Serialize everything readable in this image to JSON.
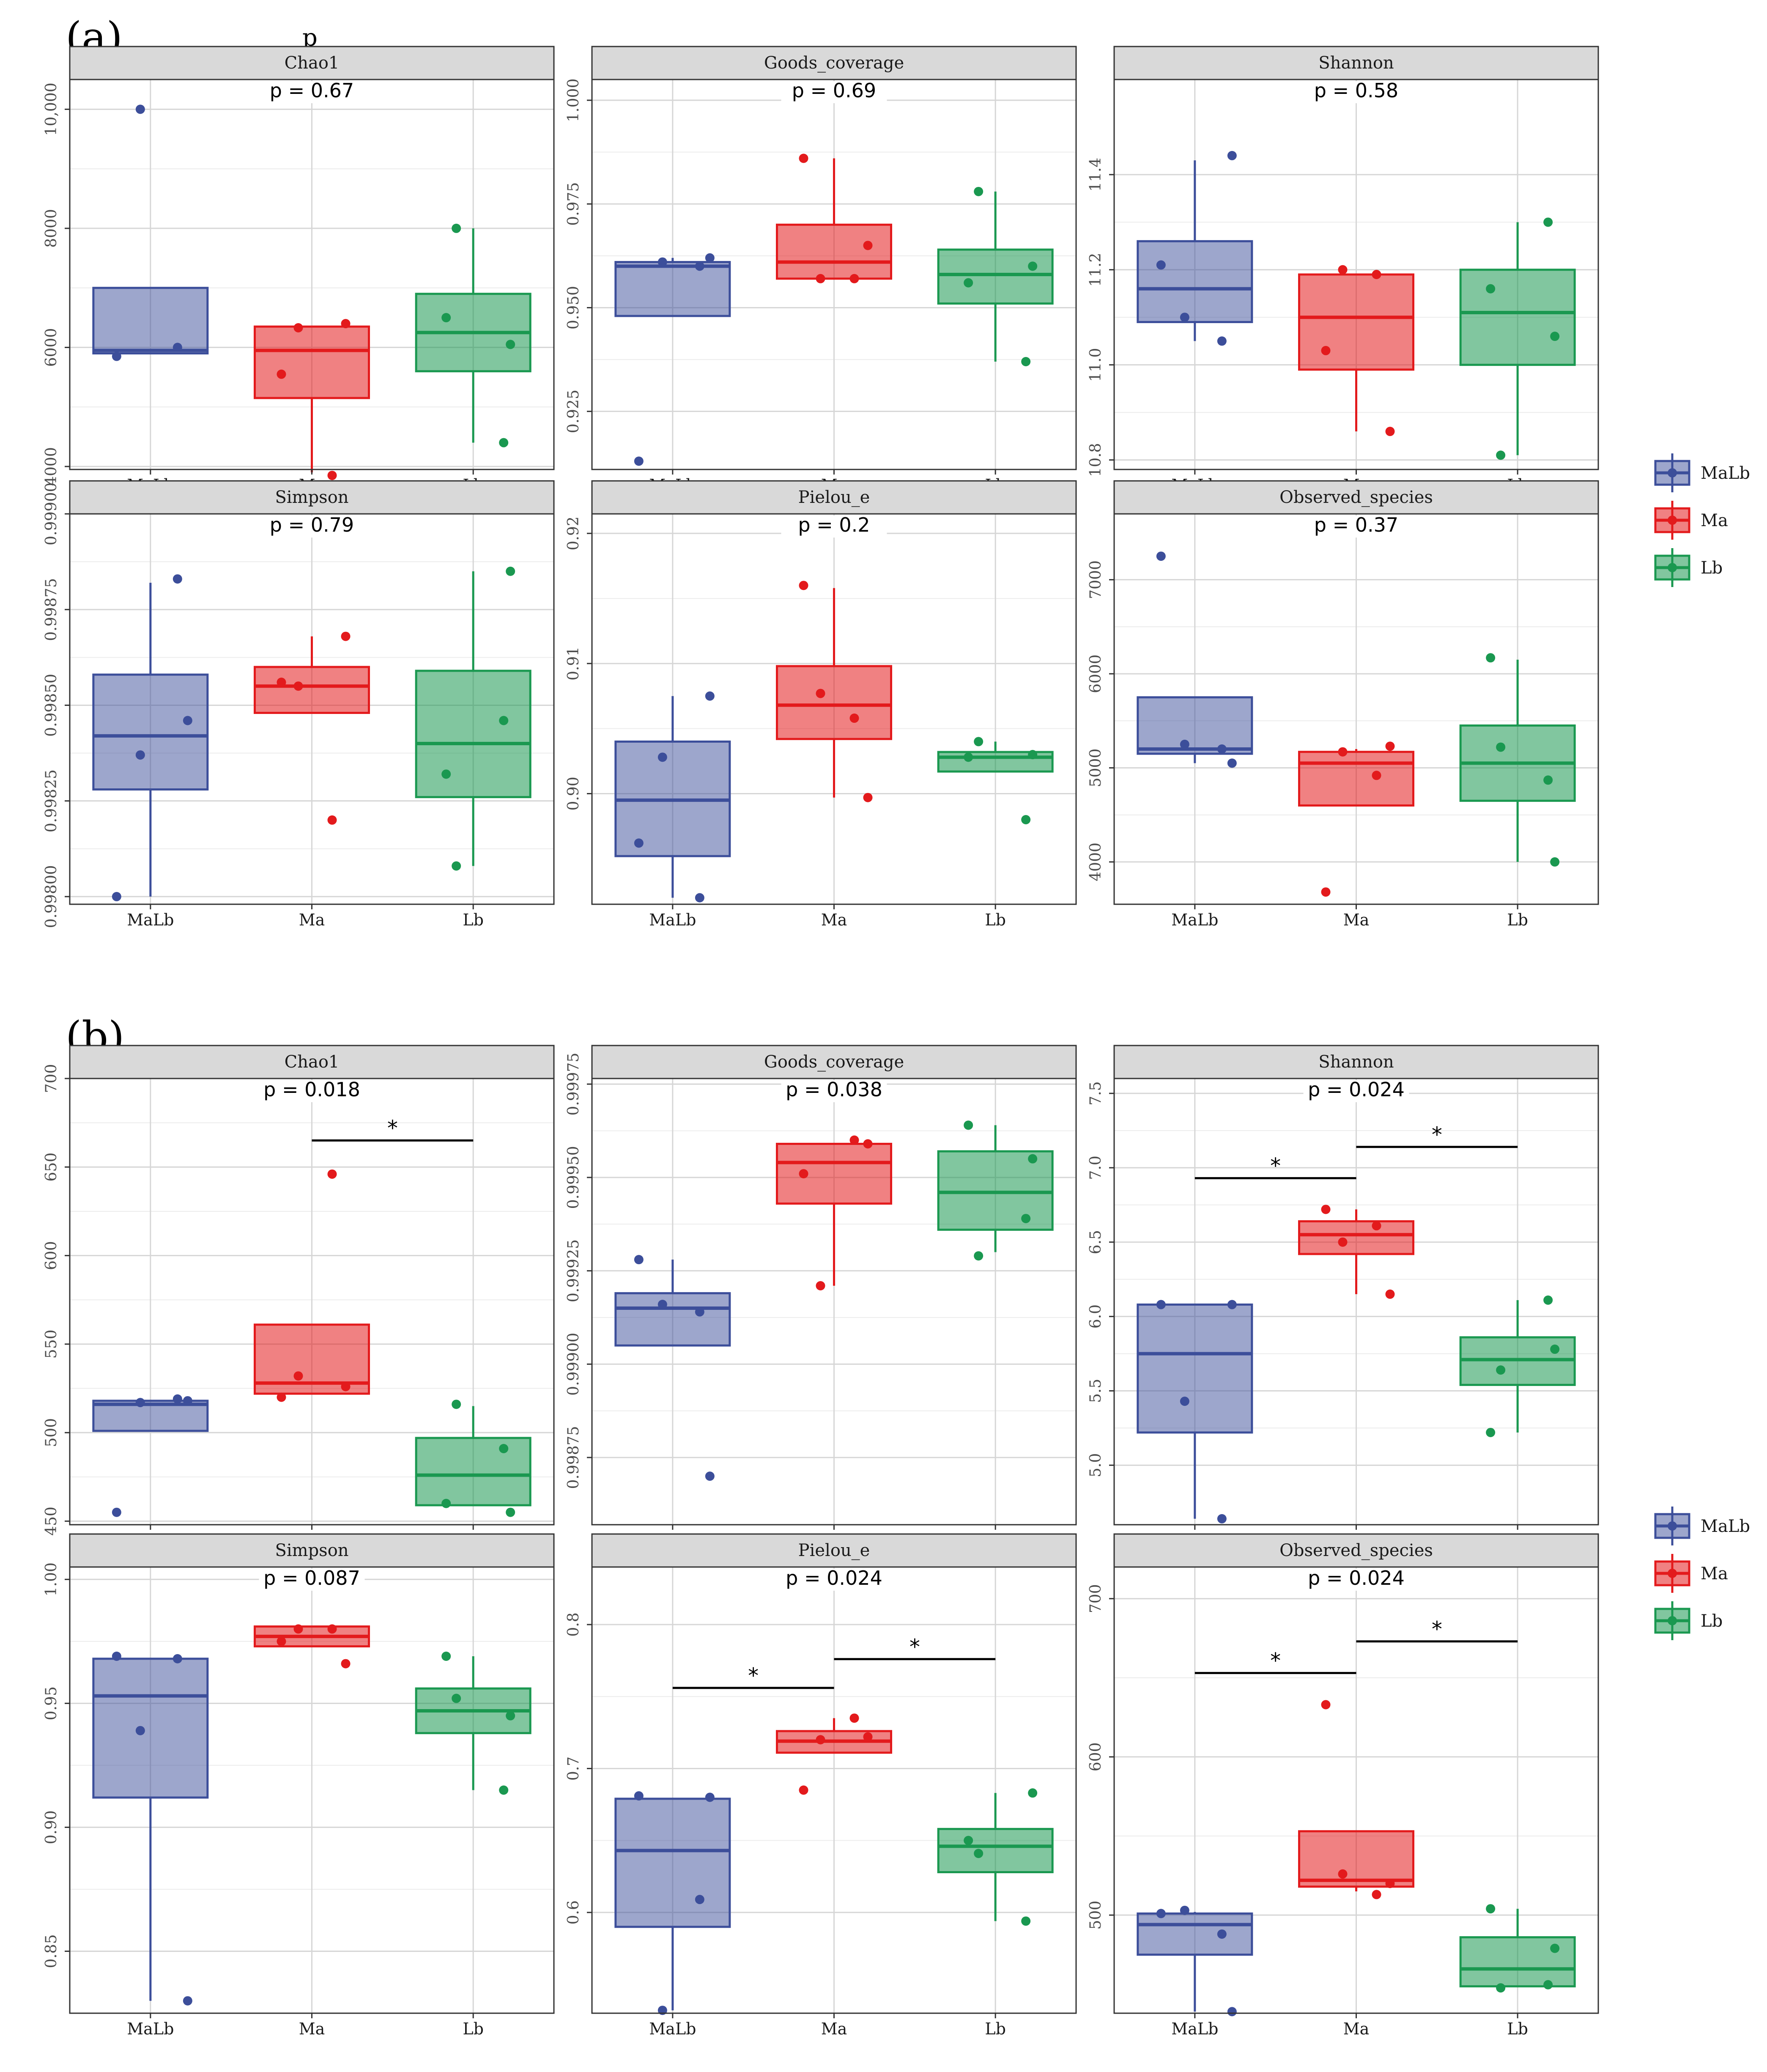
{
  "figure": {
    "stray_label": "p",
    "colors": {
      "MaLb": "#3c4e9a",
      "Ma": "#e31a1c",
      "Lb": "#1a9850"
    },
    "legend": [
      "MaLb",
      "Ma",
      "Lb"
    ]
  },
  "chart_data": [
    {
      "panel": "(a)",
      "type": "box",
      "categories": [
        "MaLb",
        "Ma",
        "Lb"
      ],
      "facets": [
        {
          "title": "Chao1",
          "p_label": "p = 0.67",
          "ylim": [
            3950,
            10500
          ],
          "ticks": [
            4000,
            6000,
            8000,
            10000
          ],
          "tick_labels": [
            "4000",
            "6000",
            "8000",
            "10,000"
          ],
          "boxes": [
            {
              "q1": 5900,
              "median": 5950,
              "q3": 7000,
              "lo": 5900,
              "hi": 7000,
              "points": [
                5850,
                6000,
                10000
              ]
            },
            {
              "q1": 5150,
              "median": 5950,
              "q3": 6350,
              "lo": 3900,
              "hi": 6350,
              "points": [
                3850,
                5550,
                6400,
                6330
              ]
            },
            {
              "q1": 5600,
              "median": 6250,
              "q3": 6900,
              "lo": 4400,
              "hi": 8000,
              "points": [
                6500,
                6050,
                8000,
                4400
              ]
            }
          ],
          "sig": []
        },
        {
          "title": "Goods_coverage",
          "p_label": "p = 0.69",
          "ylim": [
            0.911,
            1.005
          ],
          "ticks": [
            0.925,
            0.95,
            0.975,
            1.0
          ],
          "tick_labels": [
            "0.925",
            "0.950",
            "0.975",
            "1.000"
          ],
          "boxes": [
            {
              "q1": 0.948,
              "median": 0.96,
              "q3": 0.961,
              "lo": 0.948,
              "hi": 0.962,
              "points": [
                0.913,
                0.96,
                0.961,
                0.962
              ]
            },
            {
              "q1": 0.957,
              "median": 0.961,
              "q3": 0.97,
              "lo": 0.957,
              "hi": 0.986,
              "points": [
                0.957,
                0.986,
                0.965,
                0.957
              ]
            },
            {
              "q1": 0.951,
              "median": 0.958,
              "q3": 0.964,
              "lo": 0.937,
              "hi": 0.978,
              "points": [
                0.956,
                0.96,
                0.978,
                0.937
              ]
            }
          ],
          "sig": []
        },
        {
          "title": "Shannon",
          "p_label": "p = 0.58",
          "ylim": [
            10.78,
            11.6
          ],
          "ticks": [
            10.8,
            11.0,
            11.2,
            11.4
          ],
          "tick_labels": [
            "10.8",
            "11.0",
            "11.2",
            "11.4"
          ],
          "boxes": [
            {
              "q1": 11.09,
              "median": 11.16,
              "q3": 11.26,
              "lo": 11.05,
              "hi": 11.43,
              "points": [
                11.21,
                11.05,
                11.1,
                11.44
              ]
            },
            {
              "q1": 10.99,
              "median": 11.1,
              "q3": 11.19,
              "lo": 10.86,
              "hi": 11.19,
              "points": [
                11.19,
                11.03,
                10.86,
                11.2
              ]
            },
            {
              "q1": 11.0,
              "median": 11.11,
              "q3": 11.2,
              "lo": 10.81,
              "hi": 11.3,
              "points": [
                11.16,
                11.06,
                10.81,
                11.3
              ]
            }
          ],
          "sig": []
        },
        {
          "title": "Simpson",
          "p_label": "p = 0.79",
          "ylim": [
            0.99798,
            0.999
          ],
          "ticks": [
            0.998,
            0.99825,
            0.9985,
            0.99875,
            0.999
          ],
          "tick_labels": [
            "0.99800",
            "0.99825",
            "0.99850",
            "0.99875",
            "0.99900"
          ],
          "boxes": [
            {
              "q1": 0.99828,
              "median": 0.99842,
              "q3": 0.99858,
              "lo": 0.998,
              "hi": 0.99882,
              "points": [
                0.998,
                0.99883,
                0.99837,
                0.99846
              ]
            },
            {
              "q1": 0.99848,
              "median": 0.99855,
              "q3": 0.9986,
              "lo": 0.99848,
              "hi": 0.99868,
              "points": [
                0.9982,
                0.99856,
                0.99868,
                0.99855
              ]
            },
            {
              "q1": 0.99826,
              "median": 0.9984,
              "q3": 0.99859,
              "lo": 0.99808,
              "hi": 0.99885,
              "points": [
                0.99832,
                0.99885,
                0.99808,
                0.99846
              ]
            }
          ],
          "sig": []
        },
        {
          "title": "Pielou_e",
          "p_label": "p = 0.2",
          "ylim": [
            0.8915,
            0.9215
          ],
          "ticks": [
            0.9,
            0.91,
            0.92
          ],
          "tick_labels": [
            "0.90",
            "0.91",
            "0.92"
          ],
          "boxes": [
            {
              "q1": 0.8952,
              "median": 0.8995,
              "q3": 0.904,
              "lo": 0.892,
              "hi": 0.9075,
              "points": [
                0.8962,
                0.892,
                0.9028,
                0.9075
              ]
            },
            {
              "q1": 0.9042,
              "median": 0.9068,
              "q3": 0.9098,
              "lo": 0.8997,
              "hi": 0.9158,
              "points": [
                0.9058,
                0.916,
                0.8997,
                0.9077
              ]
            },
            {
              "q1": 0.9017,
              "median": 0.9028,
              "q3": 0.9032,
              "lo": 0.9017,
              "hi": 0.904,
              "points": [
                0.9028,
                0.903,
                0.904,
                0.898
              ]
            }
          ],
          "sig": []
        },
        {
          "title": "Observed_species",
          "p_label": "p = 0.37",
          "ylim": [
            3550,
            7700
          ],
          "ticks": [
            4000,
            5000,
            6000,
            7000
          ],
          "tick_labels": [
            "4000",
            "5000",
            "6000",
            "7000"
          ],
          "boxes": [
            {
              "q1": 5150,
              "median": 5200,
              "q3": 5750,
              "lo": 5050,
              "hi": 5750,
              "points": [
                7250,
                5200,
                5250,
                5050
              ]
            },
            {
              "q1": 4600,
              "median": 5050,
              "q3": 5170,
              "lo": 4600,
              "hi": 5200,
              "points": [
                4920,
                3680,
                5230,
                5170
              ]
            },
            {
              "q1": 4650,
              "median": 5050,
              "q3": 5450,
              "lo": 4000,
              "hi": 6150,
              "points": [
                6170,
                4000,
                5220,
                4870
              ]
            }
          ],
          "sig": []
        }
      ]
    },
    {
      "panel": "(b)",
      "type": "box",
      "categories": [
        "MaLb",
        "Ma",
        "Lb"
      ],
      "facets": [
        {
          "title": "Chao1",
          "p_label": "p = 0.018",
          "ylim": [
            448,
            700
          ],
          "ticks": [
            450,
            500,
            550,
            600,
            650,
            700
          ],
          "tick_labels": [
            "450",
            "500",
            "550",
            "600",
            "650",
            "700"
          ],
          "boxes": [
            {
              "q1": 501,
              "median": 516,
              "q3": 518,
              "lo": 501,
              "hi": 518,
              "points": [
                455,
                519,
                517,
                518
              ]
            },
            {
              "q1": 522,
              "median": 528,
              "q3": 561,
              "lo": 522,
              "hi": 561,
              "points": [
                646,
                520,
                526,
                532
              ]
            },
            {
              "q1": 459,
              "median": 476,
              "q3": 497,
              "lo": 459,
              "hi": 515,
              "points": [
                460,
                455,
                516,
                491
              ]
            }
          ],
          "sig": [
            {
              "from": 1,
              "to": 2,
              "label": "*",
              "y": 665
            }
          ]
        },
        {
          "title": "Goods_coverage",
          "p_label": "p = 0.038",
          "ylim": [
            0.99857,
            0.999765
          ],
          "ticks": [
            0.99875,
            0.999,
            0.99925,
            0.9995,
            0.99975
          ],
          "tick_labels": [
            "0.99875",
            "0.99900",
            "0.99925",
            "0.99950",
            "0.99975"
          ],
          "boxes": [
            {
              "q1": 0.99905,
              "median": 0.99915,
              "q3": 0.99919,
              "lo": 0.99905,
              "hi": 0.99928,
              "points": [
                0.99928,
                0.99914,
                0.99916,
                0.9987
              ]
            },
            {
              "q1": 0.99943,
              "median": 0.99954,
              "q3": 0.99959,
              "lo": 0.99921,
              "hi": 0.99959,
              "points": [
                0.9996,
                0.99951,
                0.99959,
                0.99921
              ]
            },
            {
              "q1": 0.99936,
              "median": 0.99946,
              "q3": 0.99957,
              "lo": 0.9993,
              "hi": 0.99964,
              "points": [
                0.99964,
                0.99955,
                0.99929,
                0.99939
              ]
            }
          ],
          "sig": []
        },
        {
          "title": "Shannon",
          "p_label": "p = 0.024",
          "ylim": [
            4.6,
            7.6
          ],
          "ticks": [
            5.0,
            5.5,
            6.0,
            6.5,
            7.0,
            7.5
          ],
          "tick_labels": [
            "5.0",
            "5.5",
            "6.0",
            "6.5",
            "7.0",
            "7.5"
          ],
          "boxes": [
            {
              "q1": 5.22,
              "median": 5.75,
              "q3": 6.08,
              "lo": 4.64,
              "hi": 6.08,
              "points": [
                6.08,
                4.64,
                5.43,
                6.08
              ]
            },
            {
              "q1": 6.42,
              "median": 6.55,
              "q3": 6.64,
              "lo": 6.15,
              "hi": 6.72,
              "points": [
                6.61,
                6.72,
                6.15,
                6.5
              ]
            },
            {
              "q1": 5.54,
              "median": 5.71,
              "q3": 5.86,
              "lo": 5.22,
              "hi": 6.11,
              "points": [
                5.22,
                5.78,
                5.64,
                6.11
              ]
            }
          ],
          "sig": [
            {
              "from": 0,
              "to": 1,
              "label": "*",
              "y": 6.93
            },
            {
              "from": 1,
              "to": 2,
              "label": "*",
              "y": 7.14
            }
          ]
        },
        {
          "title": "Simpson",
          "p_label": "p = 0.087",
          "ylim": [
            0.825,
            1.005
          ],
          "ticks": [
            0.85,
            0.9,
            0.95,
            1.0
          ],
          "tick_labels": [
            "0.85",
            "0.90",
            "0.95",
            "1.00"
          ],
          "boxes": [
            {
              "q1": 0.912,
              "median": 0.953,
              "q3": 0.968,
              "lo": 0.83,
              "hi": 0.968,
              "points": [
                0.969,
                0.968,
                0.939,
                0.83
              ]
            },
            {
              "q1": 0.973,
              "median": 0.977,
              "q3": 0.981,
              "lo": 0.973,
              "hi": 0.981,
              "points": [
                0.98,
                0.975,
                0.966,
                0.98
              ]
            },
            {
              "q1": 0.938,
              "median": 0.947,
              "q3": 0.956,
              "lo": 0.915,
              "hi": 0.969,
              "points": [
                0.969,
                0.945,
                0.952,
                0.915
              ]
            }
          ],
          "sig": []
        },
        {
          "title": "Pielou_e",
          "p_label": "p = 0.024",
          "ylim": [
            0.53,
            0.84
          ],
          "ticks": [
            0.6,
            0.7,
            0.8
          ],
          "tick_labels": [
            "0.6",
            "0.7",
            "0.8"
          ],
          "boxes": [
            {
              "q1": 0.59,
              "median": 0.643,
              "q3": 0.679,
              "lo": 0.532,
              "hi": 0.679,
              "points": [
                0.681,
                0.609,
                0.532,
                0.68
              ]
            },
            {
              "q1": 0.711,
              "median": 0.719,
              "q3": 0.726,
              "lo": 0.711,
              "hi": 0.735,
              "points": [
                0.735,
                0.685,
                0.722,
                0.72
              ]
            },
            {
              "q1": 0.628,
              "median": 0.646,
              "q3": 0.658,
              "lo": 0.594,
              "hi": 0.683,
              "points": [
                0.65,
                0.683,
                0.641,
                0.594
              ]
            }
          ],
          "sig": [
            {
              "from": 0,
              "to": 1,
              "label": "*",
              "y": 0.756
            },
            {
              "from": 1,
              "to": 2,
              "label": "*",
              "y": 0.776
            }
          ]
        },
        {
          "title": "Observed_species",
          "p_label": "p = 0.024",
          "ylim": [
            438,
            720
          ],
          "ticks": [
            500,
            600,
            700
          ],
          "tick_labels": [
            "500",
            "600",
            "700"
          ],
          "boxes": [
            {
              "q1": 475,
              "median": 494,
              "q3": 501,
              "lo": 439,
              "hi": 502,
              "points": [
                501,
                488,
                503,
                439
              ]
            },
            {
              "q1": 518,
              "median": 522,
              "q3": 553,
              "lo": 515,
              "hi": 553,
              "points": [
                513,
                633,
                520,
                526
              ]
            },
            {
              "q1": 455,
              "median": 466,
              "q3": 486,
              "lo": 455,
              "hi": 504,
              "points": [
                504,
                479,
                454,
                456
              ]
            }
          ],
          "sig": [
            {
              "from": 0,
              "to": 1,
              "label": "*",
              "y": 653
            },
            {
              "from": 1,
              "to": 2,
              "label": "*",
              "y": 673
            }
          ]
        }
      ]
    }
  ]
}
